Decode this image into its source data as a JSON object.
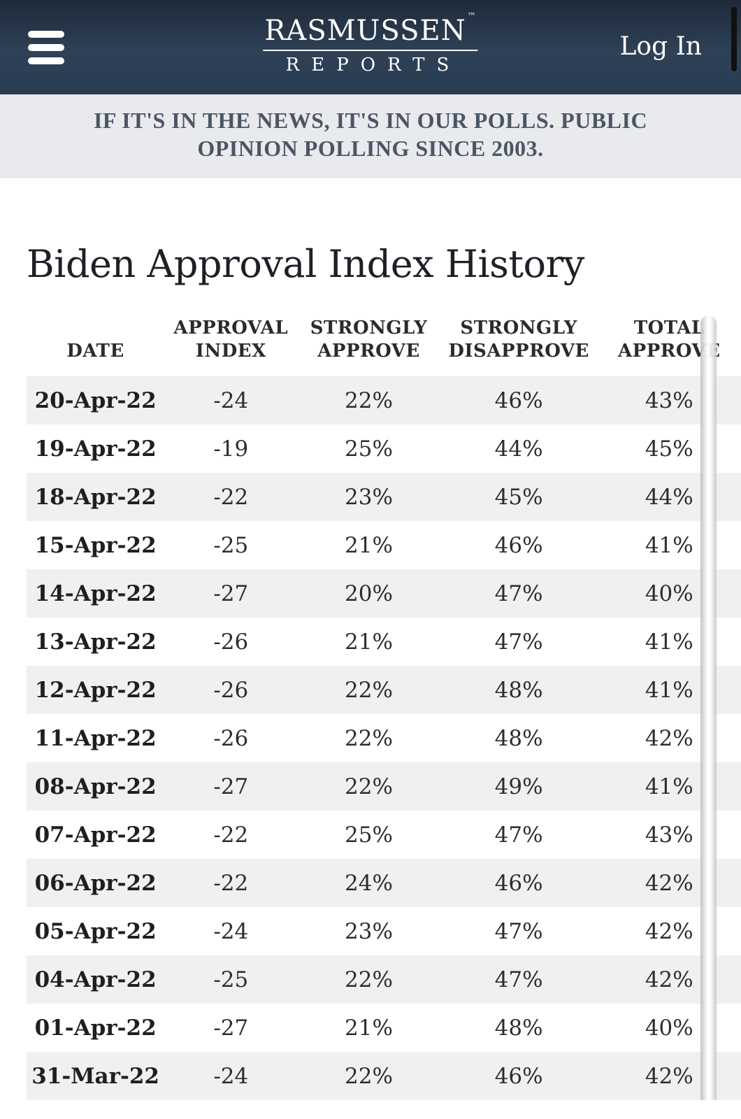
{
  "header": {
    "brand_line1": "RASMUSSEN",
    "brand_tm": "™",
    "brand_line2": "REPORTS",
    "login_label": "Log In"
  },
  "tagline": {
    "line1": "IF IT'S IN THE NEWS, IT'S IN OUR POLLS. PUBLIC",
    "line2": "OPINION POLLING SINCE 2003."
  },
  "page": {
    "title": "Biden Approval Index History"
  },
  "table": {
    "columns": [
      "DATE",
      "APPROVAL INDEX",
      "STRONGLY APPROVE",
      "STRONGLY DISAPPROVE",
      "TOTAL APPROVE"
    ],
    "rows": [
      [
        "20-Apr-22",
        "-24",
        "22%",
        "46%",
        "43%"
      ],
      [
        "19-Apr-22",
        "-19",
        "25%",
        "44%",
        "45%"
      ],
      [
        "18-Apr-22",
        "-22",
        "23%",
        "45%",
        "44%"
      ],
      [
        "15-Apr-22",
        "-25",
        "21%",
        "46%",
        "41%"
      ],
      [
        "14-Apr-22",
        "-27",
        "20%",
        "47%",
        "40%"
      ],
      [
        "13-Apr-22",
        "-26",
        "21%",
        "47%",
        "41%"
      ],
      [
        "12-Apr-22",
        "-26",
        "22%",
        "48%",
        "41%"
      ],
      [
        "11-Apr-22",
        "-26",
        "22%",
        "48%",
        "42%"
      ],
      [
        "08-Apr-22",
        "-27",
        "22%",
        "49%",
        "41%"
      ],
      [
        "07-Apr-22",
        "-22",
        "25%",
        "47%",
        "43%"
      ],
      [
        "06-Apr-22",
        "-22",
        "24%",
        "46%",
        "42%"
      ],
      [
        "05-Apr-22",
        "-24",
        "23%",
        "47%",
        "42%"
      ],
      [
        "04-Apr-22",
        "-25",
        "22%",
        "47%",
        "42%"
      ],
      [
        "01-Apr-22",
        "-27",
        "21%",
        "48%",
        "40%"
      ],
      [
        "31-Mar-22",
        "-24",
        "22%",
        "46%",
        "42%"
      ]
    ]
  },
  "colors": {
    "header_bg": "#2b3c51",
    "tagline_bg": "#e8eaed",
    "tagline_text": "#4b5665",
    "row_stripe": "#f0f0f0",
    "text_dark": "#1d2126"
  }
}
